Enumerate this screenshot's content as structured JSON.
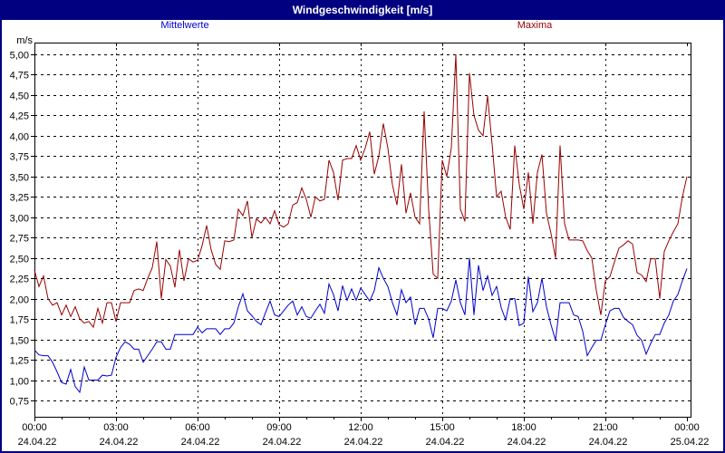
{
  "window": {
    "title": "Windgeschwindigkeit [m/s]"
  },
  "legend": {
    "mean_label": "Mittelwerte",
    "max_label": "Maxima"
  },
  "colors": {
    "titlebar": "#000080",
    "page_border": "#000080",
    "mean_series": "#0000CC",
    "max_series": "#990000",
    "grid": "#000000",
    "background": "#FFFFFF"
  },
  "axes": {
    "y_unit_label": "m/s",
    "y_ticks": [
      {
        "value": 5.0,
        "label": "5,00"
      },
      {
        "value": 4.75,
        "label": "4,75"
      },
      {
        "value": 4.5,
        "label": "4,50"
      },
      {
        "value": 4.25,
        "label": "4,25"
      },
      {
        "value": 4.0,
        "label": "4,00"
      },
      {
        "value": 3.75,
        "label": "3,75"
      },
      {
        "value": 3.5,
        "label": "3,50"
      },
      {
        "value": 3.25,
        "label": "3,25"
      },
      {
        "value": 3.0,
        "label": "3,00"
      },
      {
        "value": 2.75,
        "label": "2,75"
      },
      {
        "value": 2.5,
        "label": "2,50"
      },
      {
        "value": 2.25,
        "label": "2,25"
      },
      {
        "value": 2.0,
        "label": "2,00"
      },
      {
        "value": 1.75,
        "label": "1,75"
      },
      {
        "value": 1.5,
        "label": "1,50"
      },
      {
        "value": 1.25,
        "label": "1,25"
      },
      {
        "value": 1.0,
        "label": "1,00"
      },
      {
        "value": 0.75,
        "label": "0,75"
      }
    ],
    "x_ticks": [
      {
        "time": "00:00",
        "date": "24.04.22"
      },
      {
        "time": "03:00",
        "date": "24.04.22"
      },
      {
        "time": "06:00",
        "date": "24.04.22"
      },
      {
        "time": "09:00",
        "date": "24.04.22"
      },
      {
        "time": "12:00",
        "date": "24.04.22"
      },
      {
        "time": "15:00",
        "date": "24.04.22"
      },
      {
        "time": "18:00",
        "date": "24.04.22"
      },
      {
        "time": "21:00",
        "date": "24.04.22"
      },
      {
        "time": "00:00",
        "date": "25.04.22"
      }
    ]
  },
  "chart_data": {
    "type": "line",
    "title": "Windgeschwindigkeit [m/s]",
    "ylabel": "m/s",
    "ylim": [
      0.75,
      5.0
    ],
    "x_start": "24.04.22 00:00",
    "x_end": "25.04.22 00:00",
    "x_interval_minutes": 10,
    "grid": true,
    "legend_position": "top",
    "series": [
      {
        "name": "Mittelwerte",
        "color": "#0000CC",
        "values": [
          1.37,
          1.31,
          1.3,
          1.3,
          1.22,
          1.1,
          0.97,
          0.95,
          1.13,
          0.92,
          0.85,
          1.16,
          1.0,
          1.0,
          1.0,
          1.06,
          1.05,
          1.06,
          1.28,
          1.4,
          1.47,
          1.44,
          1.38,
          1.38,
          1.22,
          1.3,
          1.38,
          1.47,
          1.47,
          1.38,
          1.38,
          1.56,
          1.56,
          1.56,
          1.56,
          1.56,
          1.65,
          1.58,
          1.63,
          1.63,
          1.63,
          1.56,
          1.63,
          1.63,
          1.7,
          1.9,
          2.06,
          1.85,
          1.79,
          1.72,
          1.68,
          1.83,
          1.97,
          1.8,
          1.78,
          1.85,
          1.92,
          1.97,
          1.8,
          1.9,
          1.78,
          1.76,
          1.85,
          1.93,
          1.82,
          2.18,
          2.05,
          1.85,
          2.16,
          1.98,
          2.12,
          1.98,
          2.13,
          2.05,
          1.97,
          2.1,
          2.38,
          2.25,
          2.15,
          1.95,
          1.8,
          2.11,
          1.95,
          2.02,
          1.68,
          1.88,
          1.88,
          1.75,
          1.52,
          1.88,
          1.88,
          1.85,
          1.97,
          2.23,
          1.95,
          1.8,
          2.5,
          1.8,
          2.41,
          2.1,
          2.28,
          2.04,
          2.15,
          1.89,
          1.74,
          2.0,
          2.0,
          1.67,
          1.7,
          2.27,
          1.84,
          1.95,
          2.25,
          1.9,
          1.68,
          1.49,
          1.95,
          1.95,
          1.95,
          1.8,
          1.78,
          1.6,
          1.3,
          1.4,
          1.49,
          1.49,
          1.68,
          1.85,
          1.88,
          1.88,
          1.77,
          1.72,
          1.68,
          1.55,
          1.49,
          1.32,
          1.45,
          1.56,
          1.56,
          1.7,
          1.8,
          1.97,
          2.05,
          2.22,
          2.37
        ]
      },
      {
        "name": "Maxima",
        "color": "#990000",
        "values": [
          2.35,
          2.15,
          2.28,
          2.0,
          1.92,
          1.95,
          1.8,
          1.92,
          1.78,
          1.9,
          1.75,
          1.7,
          1.72,
          1.65,
          1.88,
          1.7,
          1.95,
          1.95,
          1.72,
          1.95,
          1.95,
          1.95,
          2.1,
          2.12,
          2.1,
          2.25,
          2.38,
          2.7,
          2.0,
          2.48,
          2.4,
          2.14,
          2.6,
          2.22,
          2.49,
          2.45,
          2.47,
          2.65,
          2.9,
          2.6,
          2.42,
          2.36,
          2.71,
          2.7,
          2.72,
          3.1,
          3.02,
          3.2,
          2.75,
          2.98,
          2.93,
          3.0,
          2.92,
          3.08,
          2.91,
          2.88,
          2.92,
          3.15,
          3.18,
          3.36,
          3.22,
          3.0,
          3.25,
          3.2,
          3.22,
          3.7,
          3.55,
          3.21,
          3.7,
          3.72,
          3.72,
          3.88,
          3.7,
          3.85,
          4.05,
          3.53,
          3.75,
          4.15,
          3.85,
          3.4,
          3.15,
          3.65,
          3.05,
          3.3,
          3.0,
          2.92,
          4.3,
          3.1,
          2.3,
          2.25,
          3.7,
          3.5,
          3.85,
          5.0,
          3.1,
          2.95,
          4.77,
          4.25,
          4.07,
          4.0,
          4.49,
          3.9,
          3.25,
          3.32,
          3.0,
          2.85,
          3.88,
          3.4,
          3.1,
          3.55,
          2.92,
          3.55,
          3.77,
          3.05,
          2.8,
          2.5,
          3.88,
          2.92,
          2.72,
          2.72,
          2.72,
          2.71,
          2.59,
          2.5,
          2.1,
          1.8,
          2.22,
          2.27,
          2.45,
          2.62,
          2.66,
          2.71,
          2.67,
          2.32,
          2.29,
          2.21,
          2.49,
          2.49,
          2.0,
          2.58,
          2.71,
          2.82,
          2.92,
          3.25,
          3.5
        ]
      }
    ]
  }
}
